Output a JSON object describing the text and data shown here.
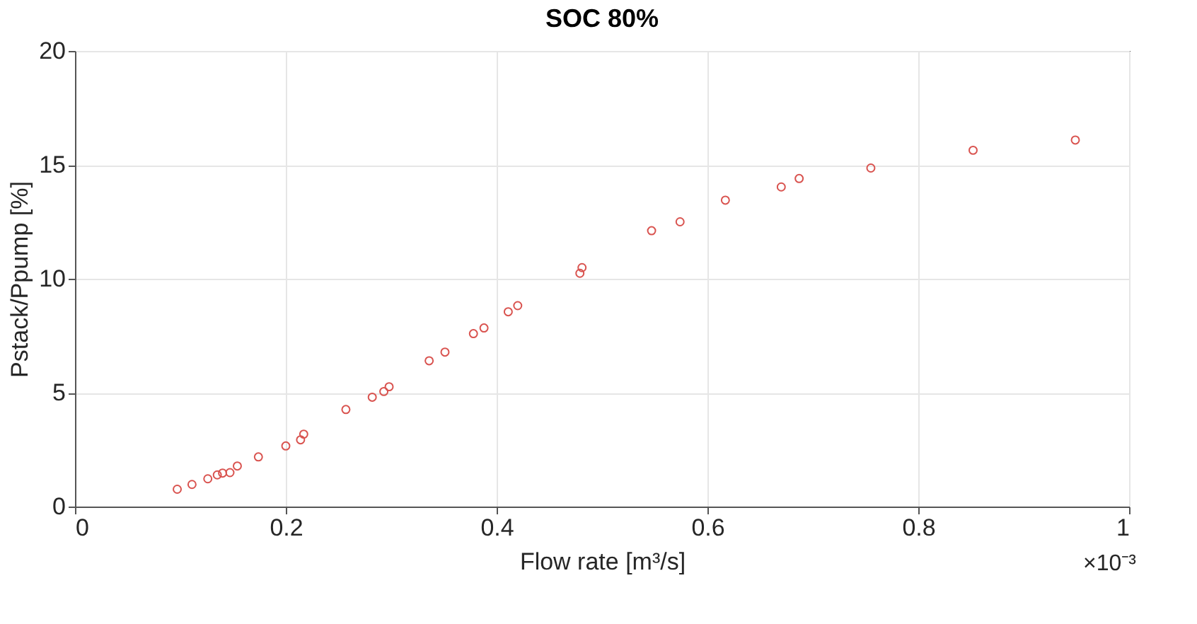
{
  "chart_data": {
    "type": "scatter",
    "title": "SOC 80%",
    "xlabel": "Flow rate [m³/s]",
    "ylabel": "Pstack/Ppump [%]",
    "annotations": [
      "×10⁻³"
    ],
    "x": [
      0.097,
      0.111,
      0.126,
      0.135,
      0.14,
      0.147,
      0.154,
      0.174,
      0.2,
      0.214,
      0.217,
      0.257,
      0.282,
      0.293,
      0.298,
      0.336,
      0.351,
      0.378,
      0.388,
      0.411,
      0.42,
      0.479,
      0.481,
      0.547,
      0.574,
      0.617,
      0.67,
      0.687,
      0.755,
      0.852,
      0.949
    ],
    "series": [
      {
        "color": "#d9534f",
        "values": [
          0.76,
          0.97,
          1.22,
          1.39,
          1.47,
          1.49,
          1.78,
          2.18,
          2.66,
          2.93,
          3.18,
          4.26,
          4.8,
          5.05,
          5.26,
          6.4,
          6.78,
          7.59,
          7.84,
          8.55,
          8.82,
          10.24,
          10.49,
          12.11,
          12.5,
          13.45,
          14.03,
          14.4,
          14.86,
          15.64,
          16.09
        ]
      }
    ],
    "xlim": [
      0,
      1
    ],
    "xticks": [
      0,
      0.2,
      0.4,
      0.6,
      0.8,
      1
    ],
    "ylim": [
      0,
      20
    ],
    "yticks": [
      0,
      5,
      10,
      15,
      20
    ],
    "grid": true,
    "marker": "circle"
  }
}
